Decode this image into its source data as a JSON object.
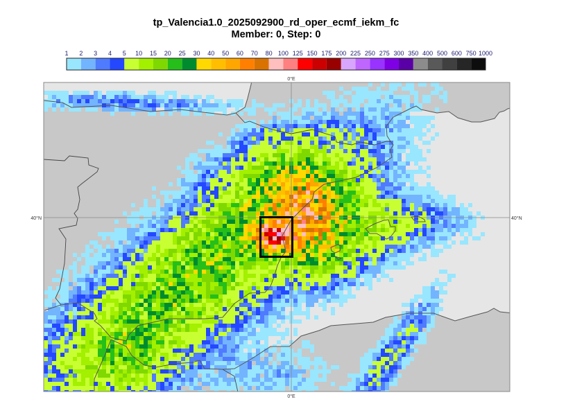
{
  "title": {
    "line1": "tp_Valencia1.0_2025092900_rd_oper_ecmf_iekm_fc",
    "line2": "Member: 0, Step: 0"
  },
  "legend": {
    "labels": [
      "1",
      "2",
      "3",
      "4",
      "5",
      "10",
      "15",
      "20",
      "25",
      "30",
      "40",
      "50",
      "60",
      "70",
      "80",
      "100",
      "125",
      "150",
      "175",
      "200",
      "225",
      "250",
      "275",
      "300",
      "350",
      "400",
      "500",
      "600",
      "750",
      "1000"
    ],
    "colors": [
      "#99e6ff",
      "#73b4ff",
      "#4f7bff",
      "#2448ff",
      "#c8ff33",
      "#a3f000",
      "#7fd900",
      "#26bf1a",
      "#008c2e",
      "#ffd900",
      "#ffbf00",
      "#ffa600",
      "#ff8000",
      "#d97300",
      "#ffbfbf",
      "#ff8080",
      "#ff0000",
      "#cc0000",
      "#990000",
      "#d9a6ff",
      "#bf66ff",
      "#9933ff",
      "#8000e6",
      "#5900a6",
      "#8c8c8c",
      "#595959",
      "#404040",
      "#262626",
      "#0d0d0d"
    ]
  },
  "map": {
    "lon_label_top": "0°E",
    "lon_label_bottom": "0°E",
    "lat_label_left": "40°N",
    "lat_label_right": "40°N",
    "land_color": "#c8c8c8",
    "sea_color": "#e6e6e6",
    "highlight_box_color": "#000000"
  }
}
